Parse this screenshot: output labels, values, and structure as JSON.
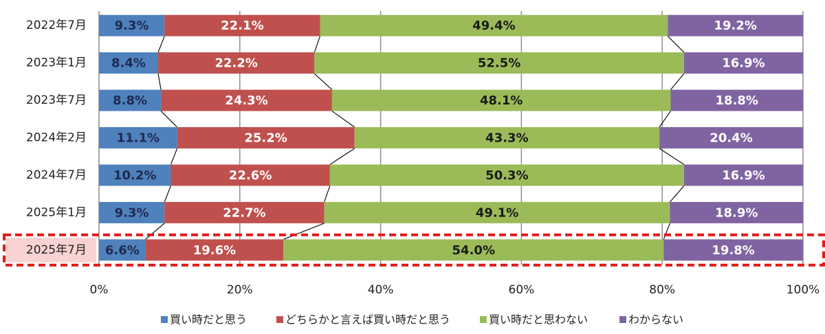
{
  "chart_data": {
    "type": "stacked-bar-horizontal",
    "categories": [
      "2022年7月",
      "2023年1月",
      "2023年7月",
      "2024年2月",
      "2024年7月",
      "2025年1月",
      "2025年7月"
    ],
    "series": [
      {
        "name": "買い時だと思う",
        "color": "#4f81bd",
        "label_color": "#1f2a4f",
        "values": [
          9.3,
          8.4,
          8.8,
          11.1,
          10.2,
          9.3,
          6.6
        ],
        "value_labels": [
          "9.3%",
          "8.4%",
          "8.8%",
          "11.1%",
          "10.2%",
          "9.3%",
          "6.6%"
        ]
      },
      {
        "name": "どちらかと言えば買い時だと思う",
        "color": "#c0504d",
        "label_color": "#ffffff",
        "values": [
          22.1,
          22.2,
          24.3,
          25.2,
          22.6,
          22.7,
          19.6
        ],
        "value_labels": [
          "22.1%",
          "22.2%",
          "24.3%",
          "25.2%",
          "22.6%",
          "22.7%",
          "19.6%"
        ]
      },
      {
        "name": "買い時だと思わない",
        "color": "#9bbb59",
        "label_color": "#1a1a1a",
        "values": [
          49.4,
          52.5,
          48.1,
          43.3,
          50.3,
          49.1,
          54.0
        ],
        "value_labels": [
          "49.4%",
          "52.5%",
          "48.1%",
          "43.3%",
          "50.3%",
          "49.1%",
          "54.0%"
        ]
      },
      {
        "name": "わからない",
        "color": "#8064a2",
        "label_color": "#ffffff",
        "values": [
          19.2,
          16.9,
          18.8,
          20.4,
          16.9,
          18.9,
          19.8
        ],
        "value_labels": [
          "19.2%",
          "16.9%",
          "18.8%",
          "20.4%",
          "16.9%",
          "18.9%",
          "19.8%"
        ]
      }
    ],
    "xlim": [
      0,
      100
    ],
    "xticks": [
      {
        "value": 0,
        "label": "0%"
      },
      {
        "value": 20,
        "label": "20%"
      },
      {
        "value": 40,
        "label": "40%"
      },
      {
        "value": 60,
        "label": "60%"
      },
      {
        "value": 80,
        "label": "80%"
      },
      {
        "value": 100,
        "label": "100%"
      }
    ],
    "grid": true,
    "legend": "bottom"
  }
}
